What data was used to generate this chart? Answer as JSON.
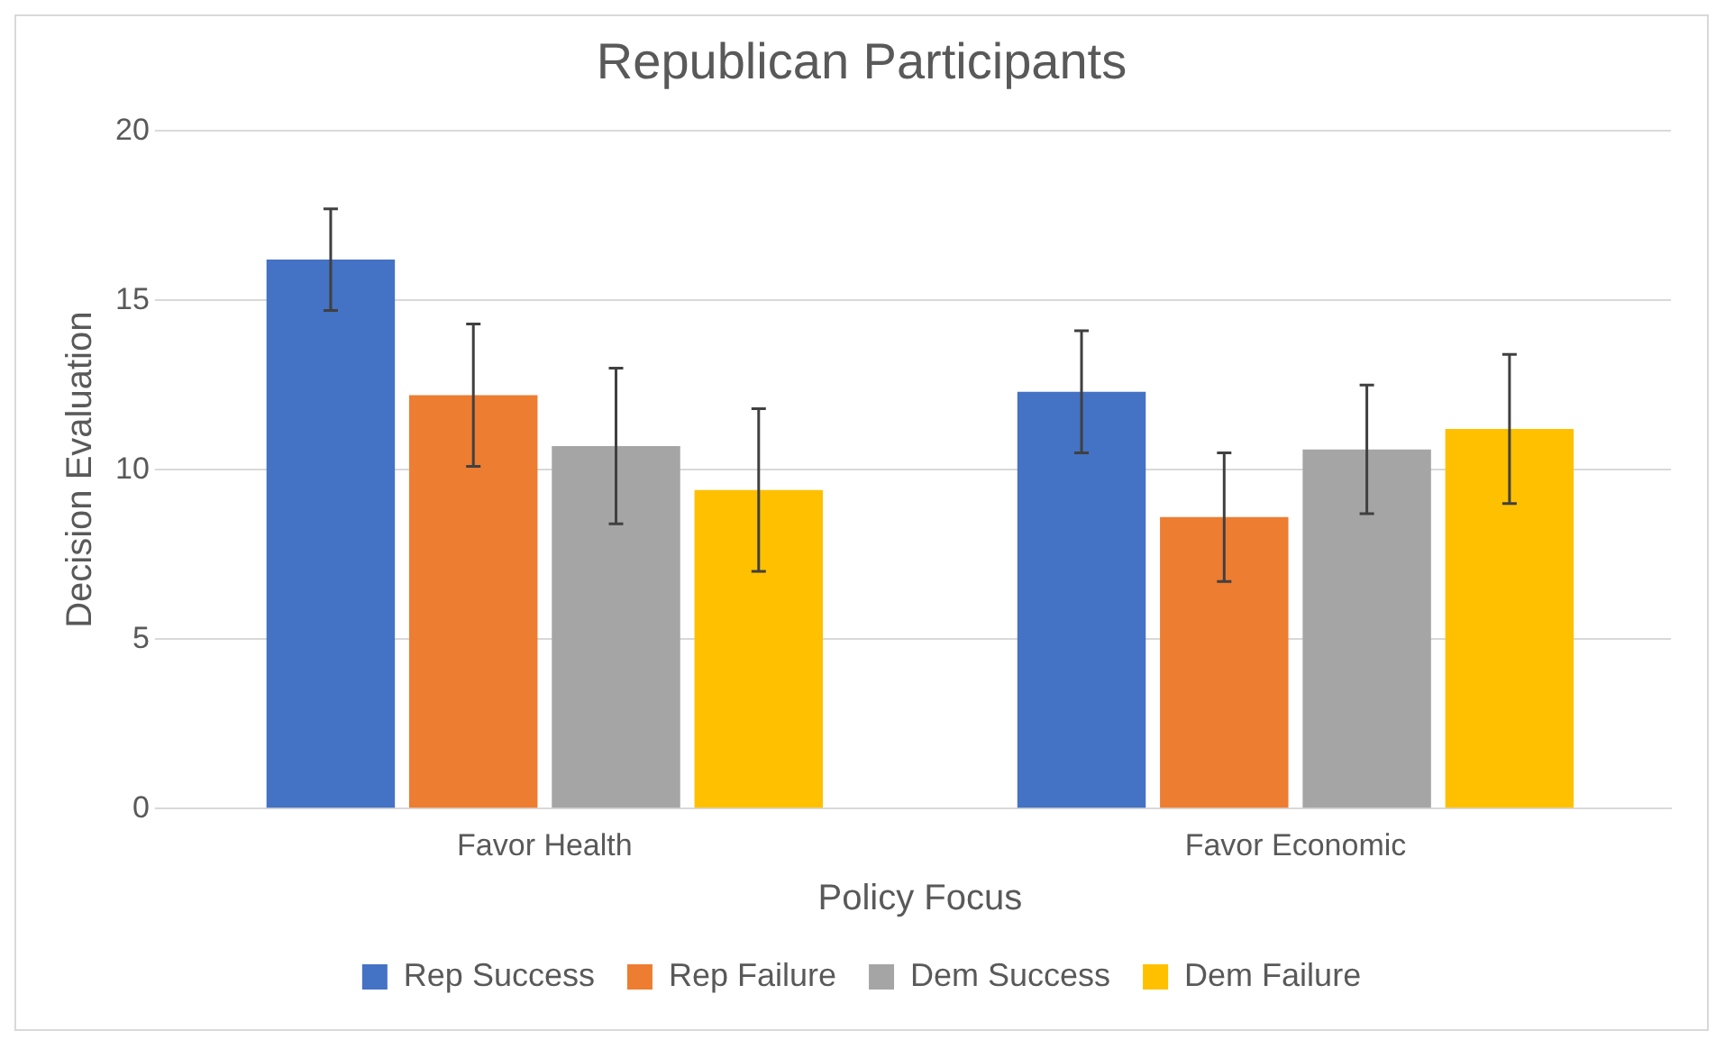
{
  "chart_data": {
    "type": "bar",
    "title": "Republican Participants",
    "xlabel": "Policy Focus",
    "ylabel": "Decision Evaluation",
    "categories": [
      "Favor Health",
      "Favor Economic"
    ],
    "series": [
      {
        "name": "Rep Success",
        "color": "#4472c4",
        "values": [
          16.2,
          12.3
        ],
        "errors": [
          1.5,
          1.8
        ]
      },
      {
        "name": "Rep Failure",
        "color": "#ed7d31",
        "values": [
          12.2,
          8.6
        ],
        "errors": [
          2.1,
          1.9
        ]
      },
      {
        "name": "Dem Success",
        "color": "#a5a5a5",
        "values": [
          10.7,
          10.6
        ],
        "errors": [
          2.3,
          1.9
        ]
      },
      {
        "name": "Dem Failure",
        "color": "#ffc000",
        "values": [
          9.4,
          11.2
        ],
        "errors": [
          2.4,
          2.2
        ]
      }
    ],
    "ylim": [
      0,
      20
    ],
    "yticks": [
      0,
      5,
      10,
      15,
      20
    ],
    "grid": "y",
    "legend": "bottom"
  }
}
